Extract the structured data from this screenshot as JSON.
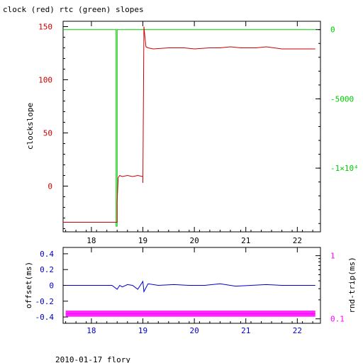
{
  "title": "clock (red) rtc (green) slopes",
  "footer": "2010-01-17 flory",
  "colors": {
    "clock": "#cc0000",
    "rtc": "#00cc00",
    "offset": "#0000cc",
    "rndtrip": "#ff00ff",
    "axes": "#000000"
  },
  "chart_data": [
    {
      "type": "line",
      "xlim": [
        17.45,
        22.45
      ],
      "x_ticks": [
        "18",
        "19",
        "20",
        "21",
        "22"
      ],
      "ylabel": "clockslope",
      "ylim": [
        -43,
        155
      ],
      "y_ticks": [
        "0",
        "50",
        "100",
        "150"
      ],
      "y2lim": [
        -14600,
        600
      ],
      "y2_ticks": [
        "0",
        "-5000",
        "-1×10⁴"
      ],
      "series": [
        {
          "name": "clock",
          "axis": "left",
          "x": [
            17.45,
            18.5,
            18.5,
            18.52,
            18.55,
            18.6,
            18.7,
            18.8,
            18.9,
            19.0,
            19.0,
            19.02,
            19.04,
            19.06,
            19.1,
            19.2,
            19.5,
            19.8,
            20.0,
            20.3,
            20.5,
            20.7,
            20.9,
            21.2,
            21.4,
            21.7,
            22.0,
            22.35
          ],
          "y": [
            -34,
            -34,
            -15,
            8,
            10,
            9,
            10,
            9,
            10,
            9,
            3,
            150,
            140,
            131,
            130,
            129,
            130,
            130,
            129,
            130,
            130,
            131,
            130,
            130,
            131,
            129,
            129,
            129
          ]
        },
        {
          "name": "rtc",
          "axis": "right",
          "x": [
            17.45,
            18.48,
            18.48,
            18.5,
            18.5,
            22.35
          ],
          "y": [
            0,
            0,
            -14200,
            -14200,
            0,
            0
          ]
        }
      ]
    },
    {
      "type": "scatter",
      "xlim": [
        17.45,
        22.45
      ],
      "x_ticks": [
        "18",
        "19",
        "20",
        "21",
        "22"
      ],
      "ylabel": "offset(ms)",
      "ylim": [
        -0.48,
        0.48
      ],
      "y_ticks": [
        "0.4",
        "0.2",
        "0",
        "-0.2",
        "-0.4"
      ],
      "y2label": "rnd-trip(ms)",
      "y2lim": [
        0.085,
        1.35
      ],
      "y2_scale": "log",
      "y2_ticks": [
        "1",
        "0.1"
      ],
      "series": [
        {
          "name": "offset",
          "axis": "left",
          "x": [
            17.5,
            17.8,
            18.1,
            18.4,
            18.5,
            18.55,
            18.6,
            18.7,
            18.8,
            18.9,
            19.0,
            19.02,
            19.1,
            19.3,
            19.6,
            19.9,
            20.2,
            20.5,
            20.8,
            21.1,
            21.4,
            21.7,
            22.0,
            22.35
          ],
          "y": [
            0,
            0,
            0,
            0,
            -0.05,
            0,
            -0.02,
            0.01,
            0,
            -0.05,
            0.05,
            -0.08,
            0.02,
            0,
            0.01,
            0,
            0,
            0.02,
            -0.01,
            0,
            0.01,
            0,
            0,
            0
          ]
        },
        {
          "name": "rnd-trip",
          "axis": "right",
          "x": [
            17.5,
            17.8,
            18.1,
            18.4,
            18.7,
            19.0,
            19.3,
            19.6,
            19.9,
            20.2,
            20.5,
            20.8,
            21.1,
            21.4,
            21.7,
            22.0,
            22.35
          ],
          "y": [
            0.12,
            0.12,
            0.12,
            0.12,
            0.12,
            0.12,
            0.12,
            0.12,
            0.12,
            0.12,
            0.12,
            0.12,
            0.12,
            0.12,
            0.12,
            0.12,
            0.12
          ]
        }
      ]
    }
  ]
}
